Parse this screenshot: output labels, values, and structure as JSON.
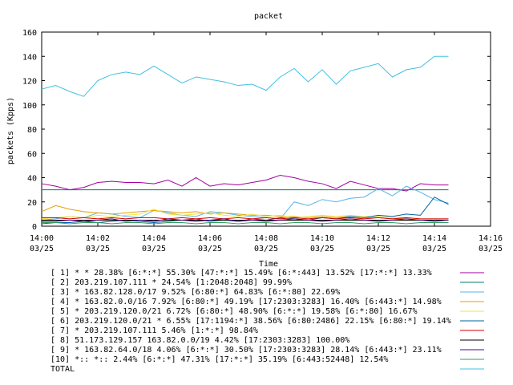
{
  "chart_data": {
    "type": "line",
    "title": "packet",
    "xlabel": "Time",
    "ylabel": "packets (Kpps)",
    "ylim": [
      0,
      160
    ],
    "yticks": [
      "0",
      "20",
      "40",
      "60",
      "80",
      "100",
      "120",
      "140",
      "160"
    ],
    "xticks": [
      {
        "time": "14:00",
        "date": "03/25"
      },
      {
        "time": "14:02",
        "date": "03/25"
      },
      {
        "time": "14:04",
        "date": "03/25"
      },
      {
        "time": "14:06",
        "date": "03/25"
      },
      {
        "time": "14:08",
        "date": "03/25"
      },
      {
        "time": "14:10",
        "date": "03/25"
      },
      {
        "time": "14:12",
        "date": "03/25"
      },
      {
        "time": "14:14",
        "date": "03/25"
      },
      {
        "time": "14:16",
        "date": "03/25"
      }
    ],
    "x_minutes": [
      0,
      0.5,
      1,
      1.5,
      2,
      2.5,
      3,
      3.5,
      4,
      4.5,
      5,
      5.5,
      6,
      6.5,
      7,
      7.5,
      8,
      8.5,
      9,
      9.5,
      10,
      10.5,
      11,
      11.5,
      12,
      12.5,
      13,
      13.5,
      14,
      14.5
    ],
    "grid": false,
    "legend_position": "bottom",
    "series": [
      {
        "name": "[ 1] * * 28.38%  [6:*:*] 55.30% [47:*:*] 15.49% [6:*:443] 13.52% [17:*:*] 13.33%",
        "color": "#a000a0",
        "values": [
          35,
          33,
          30,
          32,
          36,
          37,
          36,
          36,
          35,
          38,
          33,
          40,
          33,
          35,
          34,
          36,
          38,
          42,
          40,
          37,
          35,
          31,
          37,
          34,
          31,
          31,
          29,
          35,
          34,
          34
        ]
      },
      {
        "name": "[ 2] 203.219.107.111 * 24.54%  [1:2048:2048] 99.99%",
        "color": "#008060",
        "values": [
          30,
          30,
          30,
          30,
          30,
          30,
          30,
          30,
          30,
          30,
          30,
          30,
          30,
          30,
          30,
          30,
          30,
          30,
          30,
          30,
          30,
          30,
          30,
          30,
          30,
          30,
          30,
          30,
          30,
          30
        ]
      },
      {
        "name": "[ 3] * 163.82.128.0/17 9.52%  [6:80:*] 64.83% [6:*:80] 22.69%",
        "color": "#56b4e9",
        "values": [
          5,
          6,
          8,
          7,
          11,
          10,
          8,
          7,
          13,
          11,
          9,
          8,
          12,
          11,
          9,
          8,
          7,
          6,
          20,
          17,
          22,
          20,
          23,
          24,
          31,
          25,
          33,
          28,
          22,
          19
        ]
      },
      {
        "name": "[ 4] * 163.82.0.0/16 7.92%  [6:80:*] 49.19% [17:2303:3283] 16.40% [6:443:*] 14.98%",
        "color": "#e69f00",
        "values": [
          12,
          17,
          14,
          12,
          11,
          10,
          11,
          12,
          13,
          12,
          11,
          12,
          10,
          11,
          10,
          9,
          9,
          8,
          8,
          7,
          8,
          7,
          8,
          7,
          7,
          6,
          6,
          5,
          5,
          5
        ]
      },
      {
        "name": "[ 5] * 203.219.120.0/21 6.72%  [6:80:*] 48.90% [6:*:*] 19.58% [6:*:80] 16.67%",
        "color": "#f0e442",
        "values": [
          6,
          7,
          8,
          7,
          9,
          8,
          9,
          10,
          14,
          10,
          9,
          10,
          11,
          9,
          8,
          10,
          8,
          9,
          7,
          8,
          9,
          8,
          9,
          8,
          8,
          7,
          7,
          6,
          6,
          6
        ]
      },
      {
        "name": "[ 6] 203.219.120.0/21 * 6.55%  [17:1194:*] 38.56% [6:80:2486] 22.15% [6:80:*] 19.14%",
        "color": "#0060a0",
        "values": [
          2,
          3,
          3,
          4,
          3,
          4,
          5,
          4,
          3,
          4,
          5,
          6,
          4,
          5,
          4,
          6,
          5,
          7,
          6,
          5,
          7,
          6,
          8,
          7,
          9,
          8,
          10,
          9,
          24,
          18
        ]
      },
      {
        "name": "[ 7] * 203.219.107.111 5.46%  [1:*:*] 98.84%",
        "color": "#d00000",
        "values": [
          7,
          7,
          6,
          7,
          6,
          7,
          6,
          7,
          7,
          6,
          7,
          6,
          7,
          6,
          7,
          6,
          7,
          6,
          7,
          6,
          7,
          6,
          7,
          6,
          7,
          6,
          7,
          6,
          6,
          6
        ]
      },
      {
        "name": "[ 8] 51.173.129.157 163.82.0.0/19 4.42%  [17:2303:3283] 100.00%",
        "color": "#000000",
        "values": [
          5,
          5,
          5,
          5,
          5,
          5,
          5,
          5,
          5,
          5,
          5,
          5,
          5,
          5,
          5,
          5,
          5,
          5,
          5,
          5,
          5,
          5,
          5,
          5,
          5,
          5,
          5,
          5,
          5,
          5
        ]
      },
      {
        "name": "[ 9] * 163.82.64.0/18 4.06%  [6:*:*] 30.50% [17:2303:3283] 28.14% [6:443:*] 23.11%",
        "color": "#500090",
        "values": [
          4,
          4,
          5,
          4,
          5,
          6,
          4,
          5,
          4,
          6,
          5,
          4,
          5,
          6,
          4,
          5,
          4,
          5,
          6,
          5,
          4,
          5,
          6,
          5,
          4,
          5,
          6,
          5,
          4,
          5
        ]
      },
      {
        "name": "[10] *:: *:: 2.44%  [6:*:*] 47.31% [17:*:*] 35.19% [6:443:52448] 12.54%",
        "color": "#30a060",
        "values": [
          3,
          3,
          2,
          3,
          3,
          2,
          3,
          3,
          2,
          3,
          3,
          2,
          3,
          3,
          2,
          3,
          3,
          2,
          3,
          3,
          2,
          3,
          3,
          2,
          3,
          3,
          2,
          3,
          3,
          3
        ]
      },
      {
        "name": "TOTAL",
        "color": "#40c0e0",
        "values": [
          113,
          116,
          111,
          107,
          120,
          125,
          127,
          125,
          132,
          125,
          118,
          123,
          121,
          119,
          116,
          117,
          112,
          123,
          130,
          119,
          129,
          117,
          128,
          131,
          134,
          123,
          129,
          131,
          140,
          140
        ]
      }
    ]
  }
}
